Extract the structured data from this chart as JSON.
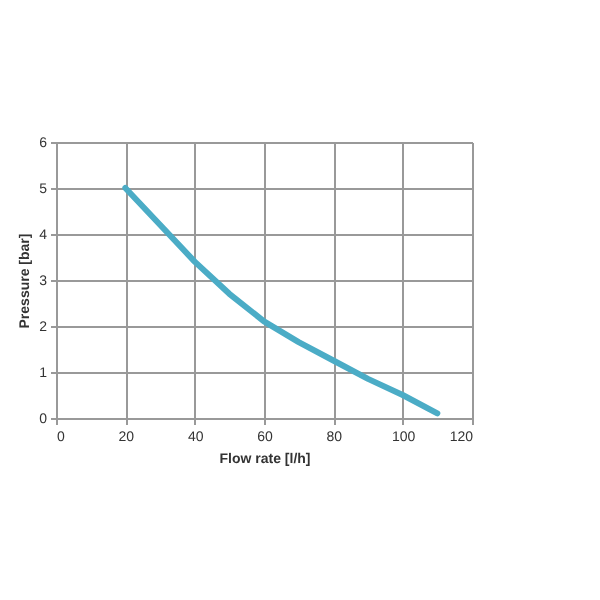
{
  "chart_data": {
    "type": "line",
    "xlabel": "Flow rate [l/h]",
    "ylabel": "Pressure [bar]",
    "x": [
      20,
      30,
      40,
      50,
      60,
      70,
      80,
      90,
      100,
      110
    ],
    "series": [
      {
        "color": "#4bacc6",
        "values": [
          5,
          4.2,
          3.4,
          2.7,
          2.1,
          1.65,
          1.25,
          0.85,
          0.5,
          0.1
        ]
      }
    ],
    "xlim": [
      0,
      120
    ],
    "xticks": [
      0,
      20,
      40,
      60,
      80,
      100,
      120
    ],
    "ylim": [
      0,
      6
    ],
    "yticks": [
      0,
      1,
      2,
      3,
      4,
      5,
      6
    ],
    "grid": true,
    "marker": "none",
    "line_style": "solid"
  }
}
